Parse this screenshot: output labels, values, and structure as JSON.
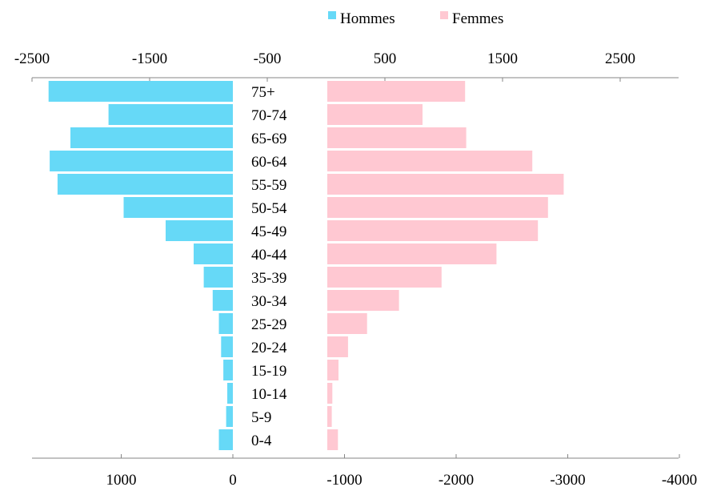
{
  "chart_data": {
    "type": "bar",
    "orientation": "horizontal",
    "layout": "population-pyramid",
    "categories": [
      "75+",
      "70-74",
      "65-69",
      "60-64",
      "55-59",
      "50-54",
      "45-49",
      "40-44",
      "35-39",
      "30-34",
      "25-29",
      "20-24",
      "15-19",
      "10-14",
      "5-9",
      "0-4"
    ],
    "series": [
      {
        "name": "Hommes",
        "color": "#66d9f7",
        "side": "left",
        "values": [
          1645,
          1110,
          1450,
          1635,
          1565,
          975,
          600,
          350,
          260,
          180,
          125,
          105,
          85,
          50,
          60,
          125
        ]
      },
      {
        "name": "Femmes",
        "color": "#ffc8d2",
        "side": "right",
        "values": [
          1230,
          850,
          1240,
          1830,
          2110,
          1970,
          1880,
          1510,
          1020,
          640,
          355,
          185,
          100,
          45,
          40,
          95
        ]
      }
    ],
    "top_axis": {
      "ticks": [
        -2500,
        -1500,
        -500,
        500,
        1500,
        2500
      ],
      "labels": [
        "-2500",
        "-1500",
        "-500",
        "500",
        "1500",
        "2500"
      ]
    },
    "bottom_axis": {
      "ticks": [
        1000,
        0,
        -1000,
        -2000,
        -3000,
        -4000
      ],
      "labels": [
        "1000",
        "0",
        "-1000",
        "-2000",
        "-3000",
        "-4000"
      ]
    },
    "legend_position": "top-right",
    "grid": false
  }
}
